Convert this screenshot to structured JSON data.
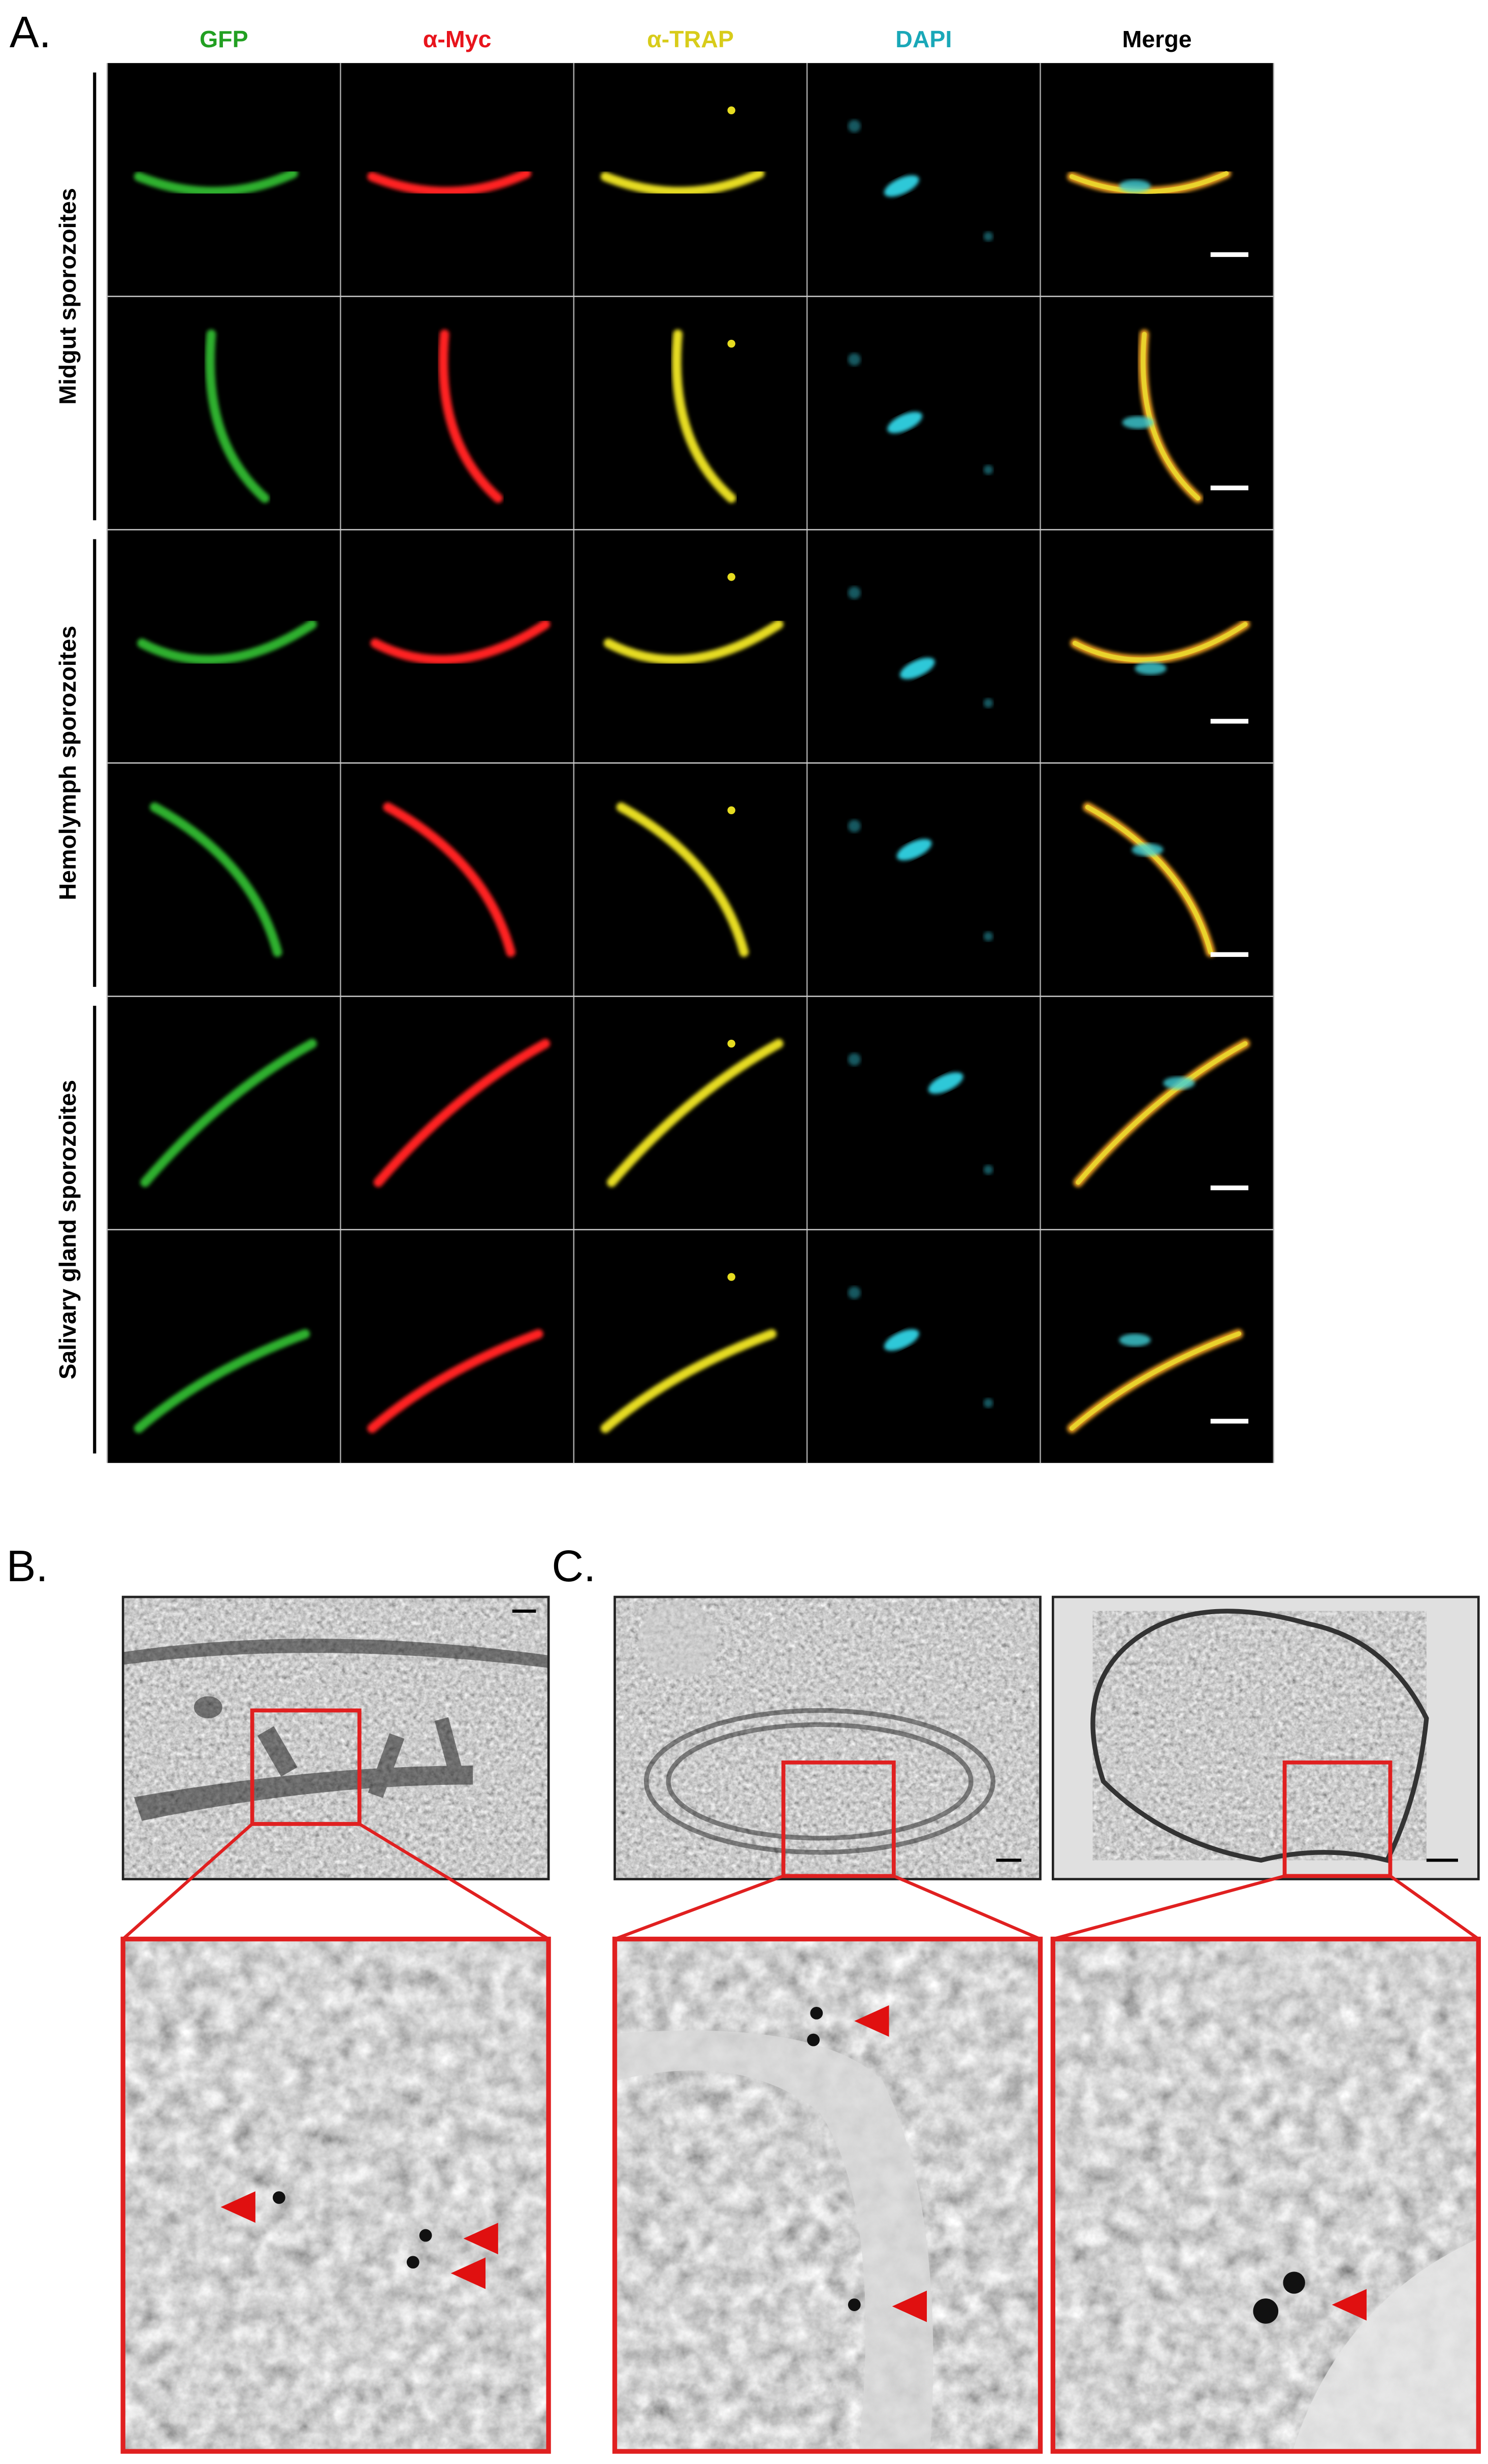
{
  "panel_a": {
    "label": "A.",
    "columns": [
      "GFP",
      "α-Myc",
      "α-TRAP",
      "DAPI",
      "Merge"
    ],
    "row_groups": [
      "Midgut sporozoites",
      "Hemolymph sporozoites",
      "Salivary gland sporozoites"
    ]
  },
  "panel_b": {
    "label": "B."
  },
  "panel_c": {
    "label": "C."
  }
}
